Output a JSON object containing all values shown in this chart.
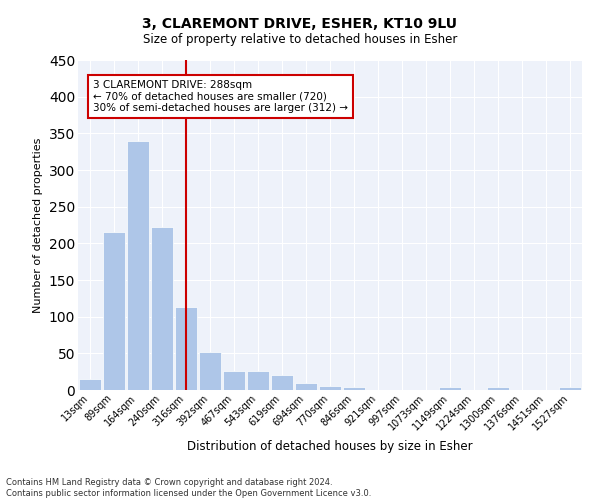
{
  "title1": "3, CLAREMONT DRIVE, ESHER, KT10 9LU",
  "title2": "Size of property relative to detached houses in Esher",
  "xlabel": "Distribution of detached houses by size in Esher",
  "ylabel": "Number of detached properties",
  "bar_labels": [
    "13sqm",
    "89sqm",
    "164sqm",
    "240sqm",
    "316sqm",
    "392sqm",
    "467sqm",
    "543sqm",
    "619sqm",
    "694sqm",
    "770sqm",
    "846sqm",
    "921sqm",
    "997sqm",
    "1073sqm",
    "1149sqm",
    "1224sqm",
    "1300sqm",
    "1376sqm",
    "1451sqm",
    "1527sqm"
  ],
  "bar_values": [
    15,
    215,
    340,
    222,
    113,
    52,
    26,
    26,
    20,
    10,
    5,
    4,
    0,
    0,
    0,
    4,
    0,
    4,
    0,
    0,
    4
  ],
  "bar_color": "#aec6e8",
  "vline_color": "#cc0000",
  "annotation_title": "3 CLAREMONT DRIVE: 288sqm",
  "annotation_line1": "← 70% of detached houses are smaller (720)",
  "annotation_line2": "30% of semi-detached houses are larger (312) →",
  "annotation_box_color": "#cc0000",
  "ylim": [
    0,
    450
  ],
  "yticks": [
    0,
    50,
    100,
    150,
    200,
    250,
    300,
    350,
    400,
    450
  ],
  "bg_color": "#eef2fa",
  "footer1": "Contains HM Land Registry data © Crown copyright and database right 2024.",
  "footer2": "Contains public sector information licensed under the Open Government Licence v3.0."
}
